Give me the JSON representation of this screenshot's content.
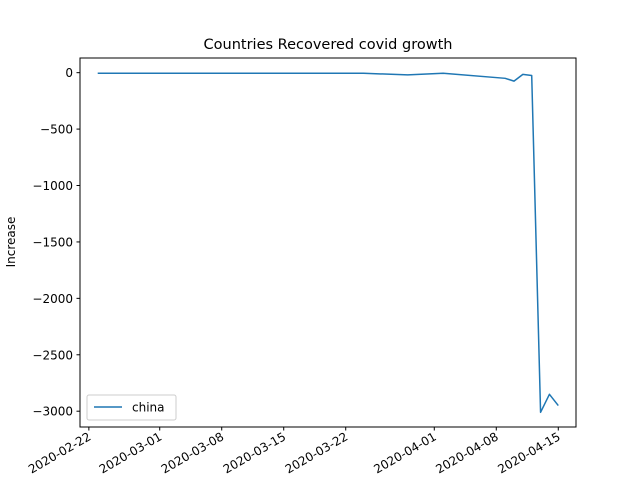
{
  "chart_data": {
    "type": "line",
    "title": "Countries Recovered covid growth",
    "xlabel": "",
    "ylabel": "Increase",
    "x_ticks": [
      "2020-02-22",
      "2020-03-01",
      "2020-03-08",
      "2020-03-15",
      "2020-03-22",
      "2020-04-01",
      "2020-04-08",
      "2020-04-15"
    ],
    "y_ticks": [
      0,
      -500,
      -1000,
      -1500,
      -2000,
      -2500,
      -3000
    ],
    "xlim": [
      "2020-02-21",
      "2020-04-17"
    ],
    "ylim": [
      -3140,
      130
    ],
    "grid": false,
    "legend_position": "lower-left",
    "line_color": "#1f77b4",
    "series": [
      {
        "name": "china",
        "points": [
          {
            "x": "2020-02-23",
            "y": -5
          },
          {
            "x": "2020-03-24",
            "y": -5
          },
          {
            "x": "2020-03-29",
            "y": -20
          },
          {
            "x": "2020-04-02",
            "y": -5
          },
          {
            "x": "2020-04-09",
            "y": -50
          },
          {
            "x": "2020-04-10",
            "y": -75
          },
          {
            "x": "2020-04-11",
            "y": -15
          },
          {
            "x": "2020-04-12",
            "y": -25
          },
          {
            "x": "2020-04-13",
            "y": -3010
          },
          {
            "x": "2020-04-14",
            "y": -2850
          },
          {
            "x": "2020-04-15",
            "y": -2950
          }
        ]
      }
    ]
  }
}
